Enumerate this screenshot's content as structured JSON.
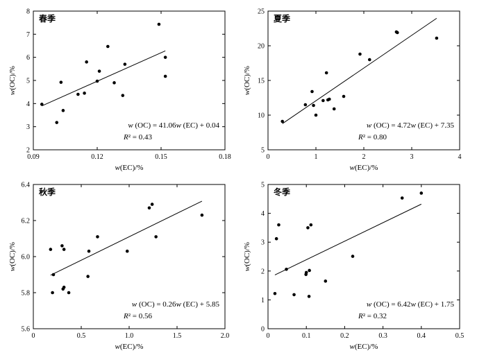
{
  "chart_data": [
    {
      "type": "scatter",
      "title": "春季",
      "xlabel": "w(EC)/%",
      "ylabel": "w(OC)/%",
      "xlim": [
        0.09,
        0.18
      ],
      "ylim": [
        2,
        8
      ],
      "xticks": [
        0.09,
        0.12,
        0.15,
        0.18
      ],
      "xtick_labels": [
        "0.09",
        "0.12",
        "0.15",
        "0.18"
      ],
      "yticks": [
        2,
        3,
        4,
        5,
        6,
        7,
        8
      ],
      "ytick_labels": [
        "2",
        "3",
        "4",
        "5",
        "6",
        "7",
        "8"
      ],
      "points": [
        [
          0.094,
          3.97
        ],
        [
          0.101,
          3.18
        ],
        [
          0.103,
          4.92
        ],
        [
          0.104,
          3.7
        ],
        [
          0.111,
          4.4
        ],
        [
          0.114,
          4.45
        ],
        [
          0.115,
          5.8
        ],
        [
          0.12,
          4.97
        ],
        [
          0.121,
          5.4
        ],
        [
          0.125,
          6.47
        ],
        [
          0.128,
          4.9
        ],
        [
          0.132,
          4.35
        ],
        [
          0.133,
          5.7
        ],
        [
          0.149,
          7.43
        ],
        [
          0.152,
          6.0
        ],
        [
          0.152,
          5.18
        ]
      ],
      "fit_x_range": [
        0.094,
        0.152
      ],
      "fit": {
        "slope": 41.06,
        "intercept": 0.04
      },
      "equation_text": "w (OC) = 41.06w (EC) + 0.04",
      "r2_text": "R² = 0.43"
    },
    {
      "type": "scatter",
      "title": "夏季",
      "xlabel": "w(EC)/%",
      "ylabel": "w(OC)/%",
      "xlim": [
        0,
        4
      ],
      "ylim": [
        5,
        25
      ],
      "xticks": [
        0,
        1,
        2,
        3,
        4
      ],
      "xtick_labels": [
        "0",
        "1",
        "2",
        "3",
        "4"
      ],
      "yticks": [
        5,
        10,
        15,
        20,
        25
      ],
      "ytick_labels": [
        "5",
        "10",
        "15",
        "20",
        "25"
      ],
      "points": [
        [
          0.3,
          9.1
        ],
        [
          0.78,
          11.5
        ],
        [
          0.92,
          13.4
        ],
        [
          0.95,
          11.4
        ],
        [
          1.0,
          10.0
        ],
        [
          1.15,
          12.1
        ],
        [
          1.22,
          16.1
        ],
        [
          1.25,
          12.2
        ],
        [
          1.28,
          12.3
        ],
        [
          1.38,
          10.9
        ],
        [
          1.58,
          12.7
        ],
        [
          1.92,
          18.8
        ],
        [
          2.12,
          18.0
        ],
        [
          2.68,
          22.0
        ],
        [
          2.7,
          21.9
        ],
        [
          3.52,
          21.1
        ]
      ],
      "fit_x_range": [
        0.3,
        3.52
      ],
      "fit": {
        "slope": 4.72,
        "intercept": 7.35
      },
      "equation_text": "w (OC) = 4.72w (EC) + 7.35",
      "r2_text": "R² = 0.80"
    },
    {
      "type": "scatter",
      "title": "秋季",
      "xlabel": "w(EC)/%",
      "ylabel": "w(OC)/%",
      "xlim": [
        0,
        2.0
      ],
      "ylim": [
        5.6,
        6.4
      ],
      "xticks": [
        0,
        0.5,
        1.0,
        1.5,
        2.0
      ],
      "xtick_labels": [
        "0",
        "0.5",
        "1.0",
        "1.5",
        "2.0"
      ],
      "yticks": [
        5.6,
        5.8,
        6.0,
        6.2,
        6.4
      ],
      "ytick_labels": [
        "5.6",
        "5.8",
        "6.0",
        "6.2",
        "6.4"
      ],
      "points": [
        [
          0.18,
          6.04
        ],
        [
          0.2,
          5.8
        ],
        [
          0.21,
          5.9
        ],
        [
          0.3,
          6.06
        ],
        [
          0.31,
          5.82
        ],
        [
          0.32,
          5.83
        ],
        [
          0.32,
          6.04
        ],
        [
          0.37,
          5.8
        ],
        [
          0.57,
          5.89
        ],
        [
          0.58,
          6.03
        ],
        [
          0.67,
          6.11
        ],
        [
          0.98,
          6.03
        ],
        [
          1.21,
          6.27
        ],
        [
          1.24,
          6.29
        ],
        [
          1.28,
          6.11
        ],
        [
          1.76,
          6.23
        ]
      ],
      "fit_x_range": [
        0.18,
        1.76
      ],
      "fit": {
        "slope": 0.26,
        "intercept": 5.85
      },
      "equation_text": "w (OC) = 0.26w (EC) + 5.85",
      "r2_text": "R² = 0.56"
    },
    {
      "type": "scatter",
      "title": "冬季",
      "xlabel": "w(EC)/%",
      "ylabel": "w(OC)/%",
      "xlim": [
        0,
        0.5
      ],
      "ylim": [
        0,
        5
      ],
      "xticks": [
        0,
        0.1,
        0.2,
        0.3,
        0.4,
        0.5
      ],
      "xtick_labels": [
        "0",
        "0.1",
        "0.2",
        "0.3",
        "0.4",
        "0.5"
      ],
      "yticks": [
        0,
        1,
        2,
        3,
        4,
        5
      ],
      "ytick_labels": [
        "0",
        "1",
        "2",
        "3",
        "4",
        "5"
      ],
      "points": [
        [
          0.018,
          1.22
        ],
        [
          0.022,
          3.12
        ],
        [
          0.028,
          3.6
        ],
        [
          0.048,
          2.06
        ],
        [
          0.068,
          1.18
        ],
        [
          0.099,
          1.88
        ],
        [
          0.1,
          1.95
        ],
        [
          0.104,
          3.5
        ],
        [
          0.107,
          1.12
        ],
        [
          0.108,
          2.02
        ],
        [
          0.112,
          3.6
        ],
        [
          0.15,
          1.65
        ],
        [
          0.221,
          2.51
        ],
        [
          0.35,
          4.53
        ],
        [
          0.4,
          4.7
        ]
      ],
      "fit_x_range": [
        0.018,
        0.4
      ],
      "fit": {
        "slope": 6.42,
        "intercept": 1.75
      },
      "equation_text": "w (OC) = 6.42w (EC) + 1.75",
      "r2_text": "R² = 0.32"
    }
  ]
}
